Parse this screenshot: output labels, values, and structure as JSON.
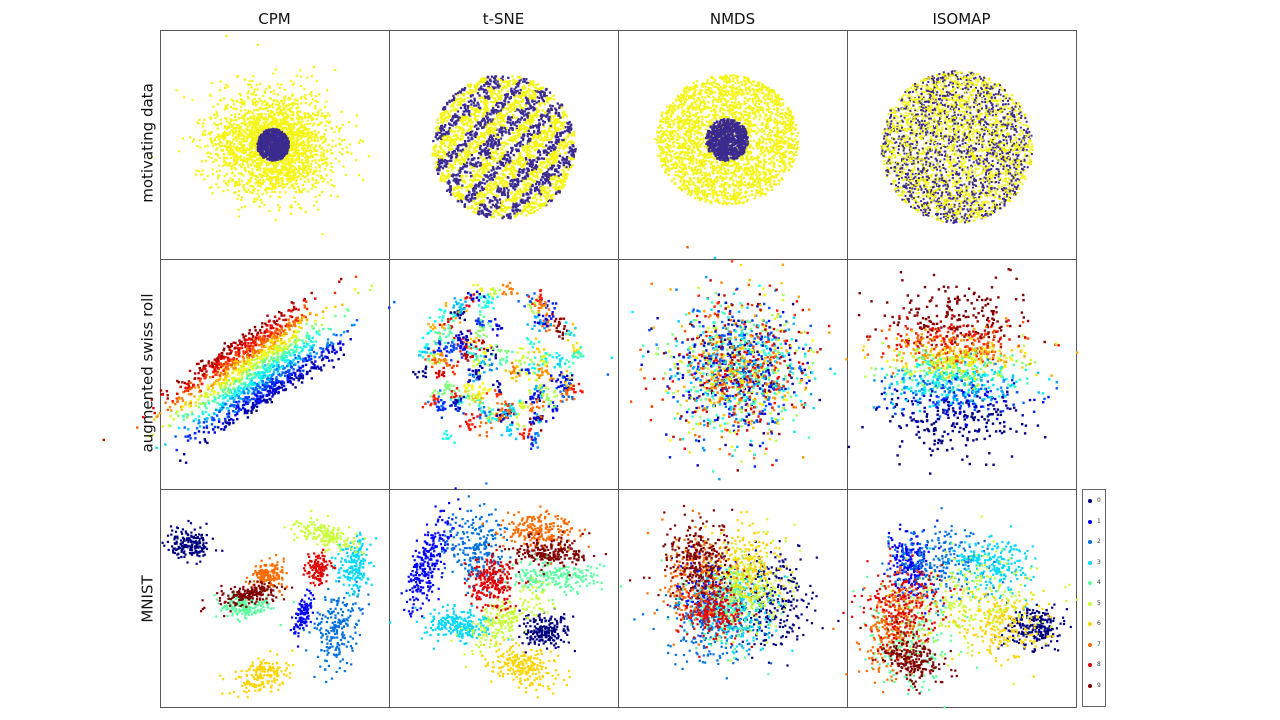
{
  "figure": {
    "columns": [
      "CPM",
      "t-SNE",
      "NMDS",
      "ISOMAP"
    ],
    "rows": [
      "motivating data",
      "augmented swiss roll",
      "MNIST"
    ]
  },
  "legend": {
    "labels": [
      "0",
      "1",
      "2",
      "3",
      "4",
      "5",
      "6",
      "7",
      "8",
      "9"
    ],
    "colors": [
      "#00007f",
      "#0000ff",
      "#0070e0",
      "#00d8ff",
      "#5cffa0",
      "#c8ff38",
      "#ffd400",
      "#ff6a00",
      "#e00000",
      "#7f0000"
    ]
  },
  "chart_data": [
    {
      "type": "scatter",
      "row": "motivating data",
      "method": "CPM",
      "description_series": [
        {
          "name": "",
          "color": "#ffff14",
          "shape": "disk"
        },
        {
          "name": "",
          "color": "#3b2a8f",
          "shape": "core"
        }
      ]
    },
    {
      "type": "scatter",
      "row": "motivating data",
      "method": "t-SNE",
      "description_series": [
        {
          "name": "",
          "color": "#ffff14"
        },
        {
          "name": "",
          "color": "#3b2a8f"
        }
      ]
    },
    {
      "type": "scatter",
      "row": "motivating data",
      "method": "NMDS",
      "description_series": [
        {
          "name": "",
          "color": "#ffff14"
        },
        {
          "name": "",
          "color": "#3b2a8f"
        }
      ]
    },
    {
      "type": "scatter",
      "row": "motivating data",
      "method": "ISOMAP",
      "description_series": [
        {
          "name": "",
          "color": "#ffff14"
        },
        {
          "name": "",
          "color": "#3b2a8f"
        }
      ]
    },
    {
      "type": "scatter",
      "row": "augmented swiss roll",
      "method": "CPM",
      "colormap": "jet"
    },
    {
      "type": "scatter",
      "row": "augmented swiss roll",
      "method": "t-SNE",
      "colormap": "jet"
    },
    {
      "type": "scatter",
      "row": "augmented swiss roll",
      "method": "NMDS",
      "colormap": "jet"
    },
    {
      "type": "scatter",
      "row": "augmented swiss roll",
      "method": "ISOMAP",
      "colormap": "jet"
    },
    {
      "type": "scatter",
      "row": "MNIST",
      "method": "CPM",
      "classes": [
        "0",
        "1",
        "2",
        "3",
        "4",
        "5",
        "6",
        "7",
        "8",
        "9"
      ]
    },
    {
      "type": "scatter",
      "row": "MNIST",
      "method": "t-SNE",
      "classes": [
        "0",
        "1",
        "2",
        "3",
        "4",
        "5",
        "6",
        "7",
        "8",
        "9"
      ]
    },
    {
      "type": "scatter",
      "row": "MNIST",
      "method": "NMDS",
      "classes": [
        "0",
        "1",
        "2",
        "3",
        "4",
        "5",
        "6",
        "7",
        "8",
        "9"
      ]
    },
    {
      "type": "scatter",
      "row": "MNIST",
      "method": "ISOMAP",
      "classes": [
        "0",
        "1",
        "2",
        "3",
        "4",
        "5",
        "6",
        "7",
        "8",
        "9"
      ]
    }
  ]
}
